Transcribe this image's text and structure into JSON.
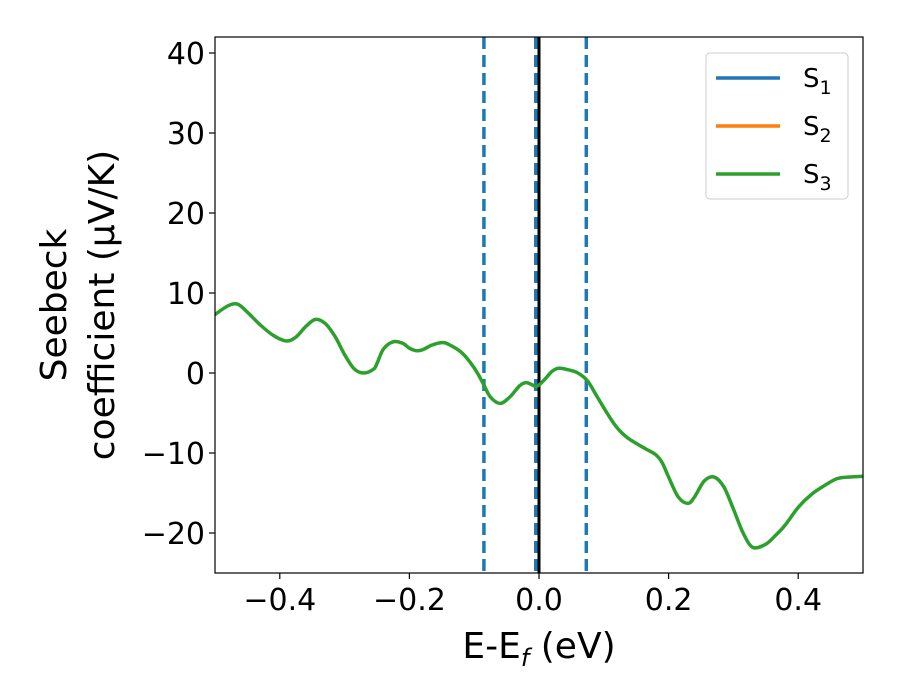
{
  "chart_data": {
    "type": "line",
    "xlabel": {
      "main": "E-E",
      "sub": "f",
      "suffix": " (eV)"
    },
    "ylabel": {
      "line1": "Seebeck",
      "line2": "coefficient  (μV/K)"
    },
    "xlim": [
      -0.5,
      0.5
    ],
    "ylim": [
      -25,
      42
    ],
    "xticks": [
      -0.4,
      -0.2,
      0.0,
      0.2,
      0.4
    ],
    "xtick_labels": [
      "−0.4",
      "−0.2",
      "0.0",
      "0.2",
      "0.4"
    ],
    "yticks": [
      -20,
      -10,
      0,
      10,
      20,
      30,
      40
    ],
    "ytick_labels": [
      "−20",
      "−10",
      "0",
      "10",
      "20",
      "30",
      "40"
    ],
    "legend_position": "top-right",
    "grid": false,
    "series": [
      {
        "name": "S",
        "sub": "1",
        "color": "#1f77b4",
        "x": [],
        "y": []
      },
      {
        "name": "S",
        "sub": "2",
        "color": "#ff7f0e",
        "x": [],
        "y": []
      },
      {
        "name": "S",
        "sub": "3",
        "color": "#2ca02c",
        "x": [
          -0.5,
          -0.48,
          -0.465,
          -0.45,
          -0.43,
          -0.41,
          -0.39,
          -0.375,
          -0.36,
          -0.345,
          -0.33,
          -0.315,
          -0.3,
          -0.285,
          -0.27,
          -0.255,
          -0.25,
          -0.24,
          -0.225,
          -0.21,
          -0.2,
          -0.19,
          -0.18,
          -0.165,
          -0.15,
          -0.14,
          -0.12,
          -0.105,
          -0.095,
          -0.085,
          -0.075,
          -0.06,
          -0.045,
          -0.03,
          -0.02,
          -0.01,
          -0.005,
          0.0,
          0.01,
          0.02,
          0.03,
          0.045,
          0.06,
          0.075,
          0.09,
          0.105,
          0.12,
          0.135,
          0.15,
          0.165,
          0.18,
          0.19,
          0.2,
          0.215,
          0.23,
          0.24,
          0.255,
          0.27,
          0.285,
          0.3,
          0.315,
          0.33,
          0.35,
          0.365,
          0.38,
          0.4,
          0.42,
          0.44,
          0.46,
          0.48,
          0.5
        ],
        "y": [
          7.3,
          8.4,
          8.6,
          7.6,
          6.0,
          4.7,
          4.0,
          4.5,
          5.8,
          6.7,
          6.2,
          4.6,
          2.3,
          0.5,
          0.0,
          0.5,
          1.2,
          3.0,
          3.9,
          3.7,
          3.1,
          2.8,
          2.9,
          3.5,
          3.8,
          3.6,
          2.6,
          1.2,
          0.0,
          -1.5,
          -3.0,
          -3.8,
          -3.0,
          -1.6,
          -1.2,
          -1.5,
          -1.7,
          -1.5,
          -0.7,
          0.2,
          0.6,
          0.4,
          0.0,
          -1.0,
          -3.0,
          -5.0,
          -6.8,
          -8.0,
          -8.8,
          -9.5,
          -10.2,
          -11.2,
          -13.0,
          -15.5,
          -16.3,
          -15.5,
          -13.5,
          -13.0,
          -14.2,
          -17.0,
          -20.0,
          -21.8,
          -21.4,
          -20.3,
          -19.0,
          -16.8,
          -15.2,
          -14.1,
          -13.2,
          -13.0,
          -12.9
        ]
      }
    ],
    "vlines": [
      {
        "x": -0.085,
        "style": "dashed",
        "color": "#1f77b4"
      },
      {
        "x": -0.005,
        "style": "dashed",
        "color": "#1f77b4"
      },
      {
        "x": 0.073,
        "style": "dashed",
        "color": "#1f77b4"
      },
      {
        "x": 0.0,
        "style": "solid",
        "color": "#000000"
      }
    ]
  }
}
